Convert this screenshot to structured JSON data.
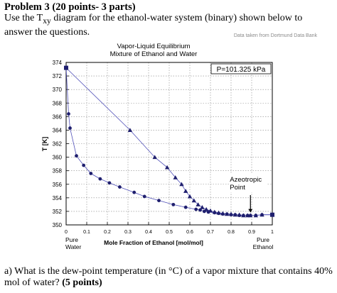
{
  "problem": {
    "title": "Problem 3 (20 points- 3 parts)",
    "intro_before_sub": "Use the T",
    "intro_sub": "xy",
    "intro_after_sub": " diagram for the ethanol-water system (binary) shown below to answer the questions."
  },
  "question": {
    "text_before_bold": "a)  What is the dew-point temperature (in °C) of a vapor mixture that contains 40% mol of water? ",
    "bold": "(5 points)"
  },
  "chart_data": {
    "type": "scatter",
    "source_note": "Data taken from Dortmund Data Bank",
    "title_line1": "Vapor-Liquid Equilibrium",
    "title_line2": "Mixture of Ethanol and Water",
    "pressure_label": "P=101.325 kPa",
    "xlabel": "Mole Fraction of Ethanol [mol/mol]",
    "ylabel": "T [K]",
    "x_end_left": "Pure\nWater",
    "x_end_right": "Pure\nEthanol",
    "xlim": [
      0,
      1
    ],
    "ylim": [
      350,
      374
    ],
    "xticks": [
      0,
      0.1,
      0.2,
      0.3,
      0.4,
      0.5,
      0.6,
      0.7,
      0.8,
      0.9,
      1
    ],
    "xtick_labels": [
      "0",
      "0.1",
      "0.2",
      "0.3",
      "0.4",
      "0.5",
      "0.6",
      "0.7",
      "0.8",
      "0.9",
      "1"
    ],
    "yticks": [
      350,
      352,
      354,
      356,
      358,
      360,
      362,
      364,
      366,
      368,
      370,
      372,
      374
    ],
    "ytick_labels": [
      "350",
      "352",
      "354",
      "356",
      "358",
      "360",
      "362",
      "364",
      "366",
      "368",
      "370",
      "372",
      "374"
    ],
    "grid": true,
    "annotation": {
      "text": "Azeotropic\nPoint",
      "x": 0.894,
      "y": 351.4
    },
    "colors": {
      "series": "#1f1f6e",
      "line": "#5050b8",
      "grid": "#888888",
      "frame": "#000000"
    },
    "series": [
      {
        "marker": "circle",
        "x": [
          0.0,
          0.012,
          0.019,
          0.05,
          0.085,
          0.12,
          0.165,
          0.21,
          0.26,
          0.33,
          0.38,
          0.45,
          0.52,
          0.58,
          0.63,
          0.65,
          0.67,
          0.69,
          0.72,
          0.74,
          0.76,
          0.78,
          0.8,
          0.82,
          0.84,
          0.86,
          0.88,
          0.894,
          0.92,
          0.95,
          1.0
        ],
        "y": [
          373.2,
          366.4,
          364.3,
          360.2,
          358.8,
          357.6,
          356.8,
          356.2,
          355.6,
          354.8,
          354.2,
          353.6,
          353.0,
          352.6,
          352.3,
          352.2,
          352.0,
          351.9,
          351.8,
          351.7,
          351.6,
          351.6,
          351.5,
          351.5,
          351.4,
          351.4,
          351.4,
          351.4,
          351.4,
          351.5,
          351.5
        ]
      },
      {
        "marker": "triangle",
        "x": [
          0.0,
          0.31,
          0.43,
          0.49,
          0.53,
          0.56,
          0.58,
          0.6,
          0.62,
          0.64,
          0.66,
          0.68,
          0.7,
          0.72,
          0.74,
          0.76,
          0.78,
          0.8,
          0.82,
          0.84,
          0.86,
          0.88,
          0.894,
          0.92,
          0.95,
          1.0
        ],
        "y": [
          373.2,
          364.0,
          360.0,
          358.5,
          357.0,
          356.0,
          355.0,
          354.2,
          353.6,
          353.0,
          352.6,
          352.3,
          352.1,
          351.9,
          351.8,
          351.7,
          351.6,
          351.6,
          351.5,
          351.5,
          351.4,
          351.4,
          351.4,
          351.4,
          351.5,
          351.5
        ]
      }
    ]
  }
}
